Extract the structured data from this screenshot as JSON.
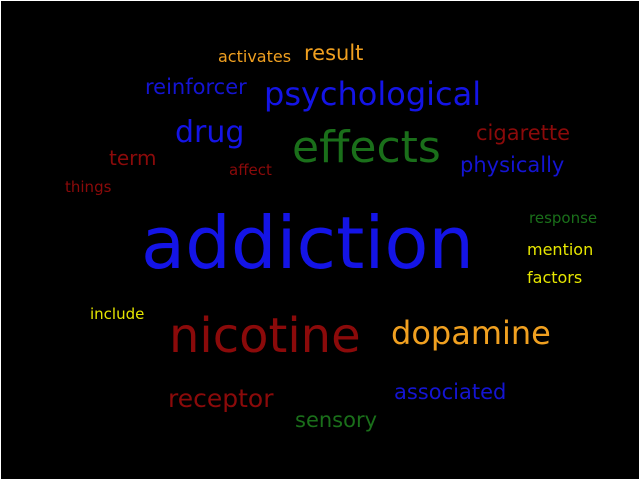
{
  "colors": {
    "background": "#000000",
    "blue": "#0000e0",
    "green": "#1a6f1a",
    "red": "#8b0a0a",
    "orange": "#f0a020",
    "yellow": "#e6e600"
  },
  "words": {
    "activates": "activates",
    "result": "result",
    "reinforcer": "reinforcer",
    "psychological": "psychological",
    "drug": "drug",
    "effects": "effects",
    "cigarette": "cigarette",
    "term": "term",
    "affect": "affect",
    "physically": "physically",
    "things": "things",
    "response": "response",
    "addiction": "addiction",
    "mention": "mention",
    "factors": "factors",
    "include": "include",
    "nicotine": "nicotine",
    "dopamine": "dopamine",
    "receptor": "receptor",
    "associated": "associated",
    "sensory": "sensory"
  }
}
